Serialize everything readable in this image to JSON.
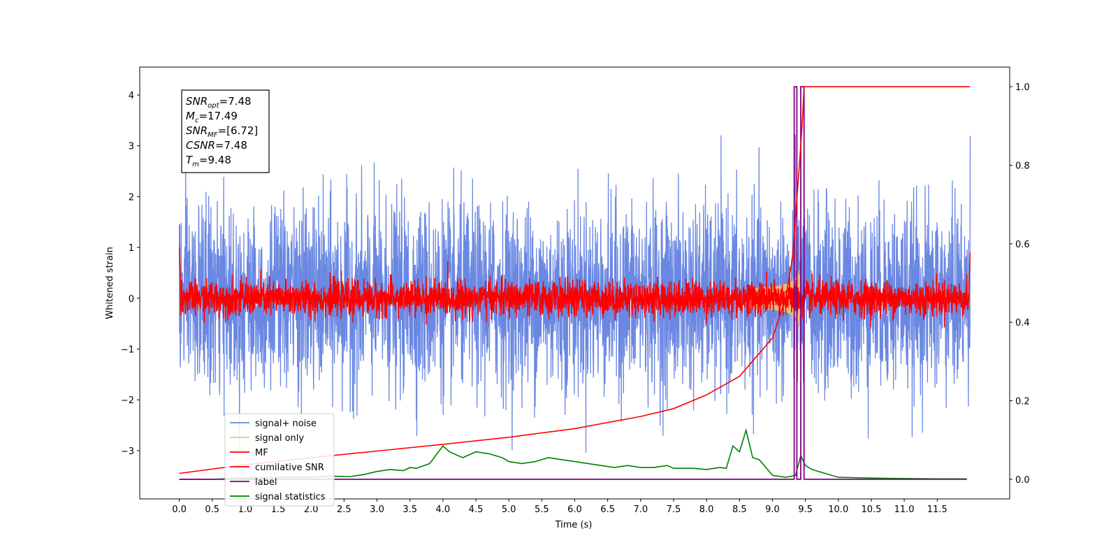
{
  "chart_data": {
    "type": "line",
    "xlabel": "Time (s)",
    "ylabel": "Whitened strain",
    "xlim": [
      -0.6,
      12.6
    ],
    "ylim": [
      -3.95,
      4.55
    ],
    "y2lim": [
      -0.05,
      1.05
    ],
    "x_ticks": [
      "0.0",
      "0.5",
      "1.0",
      "1.5",
      "2.0",
      "2.5",
      "3.0",
      "3.5",
      "4.0",
      "4.5",
      "5.0",
      "5.5",
      "6.0",
      "6.5",
      "7.0",
      "7.5",
      "8.0",
      "8.5",
      "9.0",
      "9.5",
      "10.0",
      "10.5",
      "11.0",
      "11.5"
    ],
    "y_ticks": [
      "−3",
      "−2",
      "−1",
      "0",
      "1",
      "2",
      "3",
      "4"
    ],
    "y2_ticks": [
      "0.0",
      "0.2",
      "0.4",
      "0.6",
      "0.8",
      "1.0"
    ],
    "info_box": [
      {
        "main": "SNR",
        "sub": "opt",
        "value": "=7.48"
      },
      {
        "main": "M",
        "sub": "c",
        "value": "=17.49"
      },
      {
        "main": "SNR",
        "sub": "MF",
        "value": "=[6.72]"
      },
      {
        "main": "CSNR",
        "sub": "",
        "value": "=7.48"
      },
      {
        "main": "T",
        "sub": "m",
        "value": "=9.48"
      }
    ],
    "series": [
      {
        "name": "signal+ noise",
        "color": "#6a87e2",
        "axis": "left",
        "noise_sigma": 0.9,
        "duration": 12.0
      },
      {
        "name": "signal only",
        "color": "#f5c26b",
        "axis": "left",
        "merger_time": 9.4,
        "peak_amplitude": 0.75
      },
      {
        "name": "MF",
        "color": "#ff0000",
        "axis": "left",
        "noise_sigma": 0.17,
        "edge_values": [
          1.0,
          0.9
        ]
      },
      {
        "name": "cumilative SNR",
        "color": "#ff0000",
        "axis": "right",
        "x": [
          0.0,
          1.0,
          2.0,
          3.0,
          4.0,
          5.0,
          6.0,
          7.0,
          7.5,
          8.0,
          8.5,
          9.0,
          9.2,
          9.3,
          9.4,
          9.45,
          9.48,
          12.0
        ],
        "values": [
          0.015,
          0.037,
          0.055,
          0.072,
          0.089,
          0.107,
          0.129,
          0.16,
          0.18,
          0.215,
          0.262,
          0.36,
          0.46,
          0.56,
          0.78,
          0.9,
          1.0,
          1.0
        ]
      },
      {
        "name": "label",
        "color": "#800080",
        "axis": "right",
        "x": [
          0.0,
          9.33,
          9.33,
          9.37,
          9.37,
          9.43,
          9.43,
          9.48,
          9.48,
          11.95
        ],
        "values": [
          0.0,
          0.0,
          1.0,
          1.0,
          0.0,
          0.0,
          1.0,
          1.0,
          0.0,
          0.0
        ]
      },
      {
        "name": "signal statistics",
        "color": "#008000",
        "axis": "right",
        "x": [
          0.0,
          0.5,
          1.0,
          1.5,
          2.0,
          2.3,
          2.6,
          2.8,
          3.0,
          3.2,
          3.4,
          3.5,
          3.6,
          3.8,
          4.0,
          4.1,
          4.3,
          4.5,
          4.7,
          4.9,
          5.0,
          5.2,
          5.4,
          5.6,
          5.8,
          6.0,
          6.2,
          6.4,
          6.6,
          6.8,
          7.0,
          7.2,
          7.4,
          7.5,
          7.8,
          8.0,
          8.2,
          8.3,
          8.4,
          8.5,
          8.6,
          8.7,
          8.8,
          9.0,
          9.2,
          9.35,
          9.43,
          9.5,
          9.6,
          9.8,
          10.0,
          10.5,
          11.0,
          11.5,
          11.95
        ],
        "values": [
          0.0,
          0.0,
          0.003,
          0.005,
          0.005,
          0.008,
          0.007,
          0.012,
          0.02,
          0.025,
          0.022,
          0.03,
          0.028,
          0.04,
          0.085,
          0.07,
          0.055,
          0.07,
          0.065,
          0.055,
          0.045,
          0.04,
          0.045,
          0.055,
          0.05,
          0.045,
          0.04,
          0.035,
          0.03,
          0.035,
          0.03,
          0.03,
          0.035,
          0.028,
          0.028,
          0.025,
          0.03,
          0.028,
          0.085,
          0.07,
          0.125,
          0.055,
          0.05,
          0.01,
          0.005,
          0.01,
          0.06,
          0.035,
          0.025,
          0.015,
          0.005,
          0.003,
          0.002,
          0.001,
          0.001
        ]
      }
    ],
    "legend_position": "lower left",
    "grid": false
  }
}
